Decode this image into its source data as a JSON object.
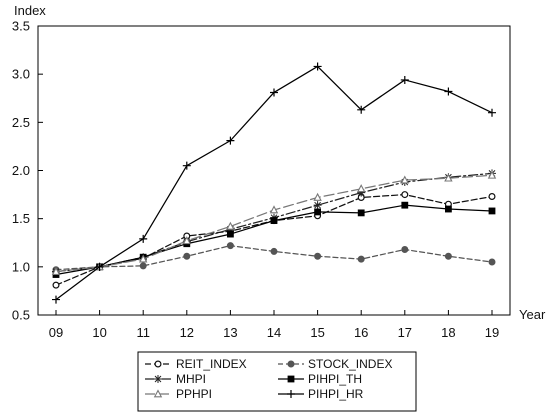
{
  "chart_data": {
    "type": "line",
    "y_axis_title": "Index",
    "x_axis_title": "Year",
    "x": [
      "09",
      "10",
      "11",
      "12",
      "13",
      "14",
      "15",
      "16",
      "17",
      "18",
      "19"
    ],
    "ylim": [
      0.5,
      3.5
    ],
    "yticks": [
      0.5,
      1.0,
      1.5,
      2.0,
      2.5,
      3.0,
      3.5
    ],
    "ytick_labels": [
      "0.5",
      "1.0",
      "1.5",
      "2.0",
      "2.5",
      "3.0",
      "3.5"
    ],
    "grid": false,
    "legend_position": "bottom",
    "series": [
      {
        "name": "REIT_INDEX",
        "values": [
          0.81,
          1.0,
          1.09,
          1.32,
          1.37,
          1.48,
          1.53,
          1.72,
          1.75,
          1.65,
          1.73
        ],
        "color": "#111111",
        "dash": "6,3",
        "marker": "circle-open"
      },
      {
        "name": "STOCK_INDEX",
        "values": [
          0.97,
          1.0,
          1.01,
          1.11,
          1.22,
          1.16,
          1.11,
          1.08,
          1.18,
          1.11,
          1.05
        ],
        "color": "#555555",
        "dash": "5,3",
        "marker": "circle-filled"
      },
      {
        "name": "MHPI",
        "values": [
          0.95,
          1.0,
          1.1,
          1.26,
          1.39,
          1.51,
          1.64,
          1.77,
          1.88,
          1.93,
          1.97
        ],
        "color": "#222222",
        "dash": "9,3,2,3",
        "marker": "asterisk"
      },
      {
        "name": "PIHPI_TH",
        "values": [
          0.92,
          1.0,
          1.1,
          1.24,
          1.34,
          1.48,
          1.57,
          1.56,
          1.64,
          1.6,
          1.58
        ],
        "color": "#000000",
        "dash": "",
        "marker": "square-filled"
      },
      {
        "name": "PPHPI",
        "values": [
          0.95,
          1.0,
          1.08,
          1.27,
          1.42,
          1.59,
          1.72,
          1.81,
          1.9,
          1.92,
          1.95
        ],
        "color": "#777777",
        "dash": "10,4",
        "marker": "triangle-open"
      },
      {
        "name": "PIHPI_HR",
        "values": [
          0.66,
          1.0,
          1.29,
          2.05,
          2.31,
          2.81,
          3.08,
          2.63,
          2.94,
          2.82,
          2.6
        ],
        "color": "#000000",
        "dash": "",
        "marker": "plus"
      }
    ]
  }
}
